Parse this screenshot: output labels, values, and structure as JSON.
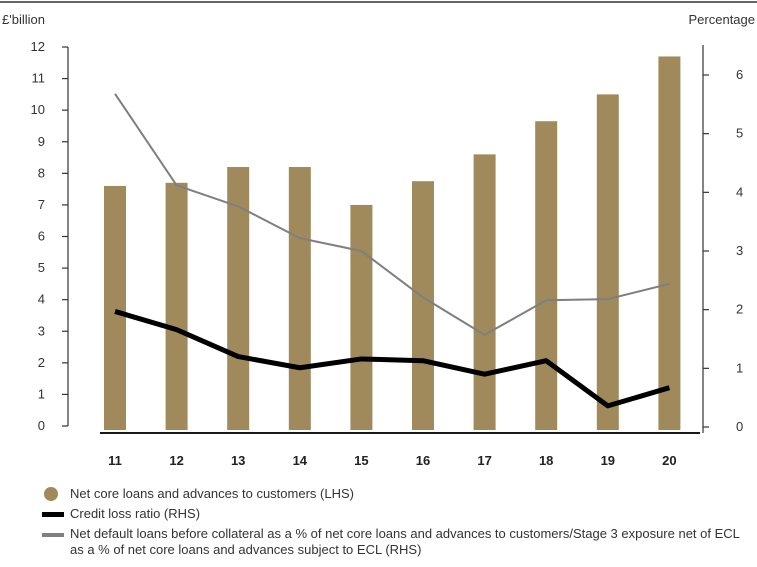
{
  "chart_data": {
    "type": "bar",
    "categories": [
      "11",
      "12",
      "13",
      "14",
      "15",
      "16",
      "17",
      "18",
      "19",
      "20"
    ],
    "left_axis": {
      "unit_label": "£'billion",
      "ylim": [
        0,
        12
      ],
      "ticks": [
        "0",
        "1",
        "2",
        "3",
        "4",
        "5",
        "6",
        "7",
        "8",
        "9",
        "10",
        "11",
        "12"
      ]
    },
    "right_axis": {
      "unit_label": "Percentage",
      "ylim": [
        0,
        6.5
      ],
      "ticks": [
        "0",
        "1",
        "2",
        "3",
        "4",
        "5",
        "6"
      ]
    },
    "series": [
      {
        "name": "Net core loans and advances to customers (LHS)",
        "kind": "bar",
        "axis": "left",
        "color": "#a08a5c",
        "values": [
          7.6,
          7.7,
          8.2,
          8.2,
          7.0,
          7.75,
          8.6,
          9.65,
          10.5,
          11.7
        ]
      },
      {
        "name": "Credit loss ratio (RHS)",
        "kind": "line",
        "axis": "right",
        "color": "#000000",
        "values": [
          1.97,
          1.66,
          1.2,
          1.01,
          1.16,
          1.13,
          0.9,
          1.13,
          0.36,
          0.67
        ]
      },
      {
        "name": "Net default loans before collateral as a % of net core loans and advances to customers/Stage 3 exposure net of ECL as a % of net core loans and advances subject to ECL (RHS)",
        "kind": "line",
        "axis": "right",
        "color": "#7f7f7f",
        "values": [
          5.68,
          4.12,
          3.76,
          3.22,
          3.0,
          2.21,
          1.57,
          2.16,
          2.18,
          2.44
        ]
      }
    ],
    "grid": false,
    "legend_position": "bottom"
  }
}
